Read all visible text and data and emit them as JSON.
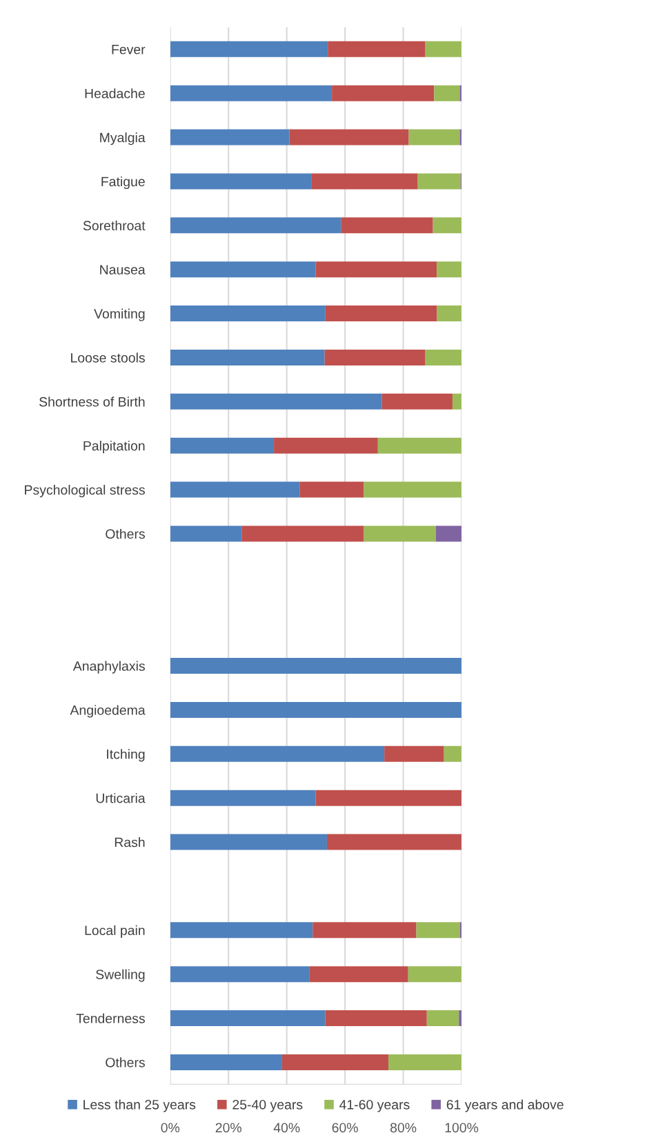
{
  "chart_data": {
    "type": "bar",
    "orientation": "horizontal",
    "stacked": true,
    "categories": [
      "Fever",
      "Headache",
      "Myalgia",
      "Fatigue",
      "Sorethroat",
      "Nausea",
      "Vomiting",
      "Loose stools",
      "Shortness of Birth",
      "Palpitation",
      "Psychological stress",
      "Others",
      null,
      null,
      "Anaphylaxis",
      "Angioedema",
      "Itching",
      "Urticaria",
      "Rash",
      null,
      "Local pain",
      "Swelling",
      "Tenderness",
      "Others"
    ],
    "series": [
      {
        "name": "Less than 25 years",
        "color": "#4f81bd",
        "values": [
          54.1,
          55.5,
          40.9,
          48.4,
          58.6,
          49.9,
          53.3,
          53.0,
          72.7,
          35.6,
          44.4,
          24.5,
          null,
          null,
          100,
          100,
          73.5,
          49.9,
          53.8,
          null,
          48.9,
          47.7,
          53.2,
          38.4
        ]
      },
      {
        "name": "25-40 years",
        "color": "#c0504d",
        "values": [
          33.5,
          35.1,
          41.0,
          36.6,
          31.6,
          41.6,
          38.3,
          34.6,
          24.2,
          35.7,
          22.1,
          42.0,
          null,
          null,
          0,
          0,
          20.5,
          50.1,
          46.2,
          null,
          35.6,
          34.0,
          34.9,
          36.5
        ]
      },
      {
        "name": "41-60 years",
        "color": "#9bbb59",
        "values": [
          12.4,
          8.8,
          17.5,
          14.7,
          9.8,
          8.5,
          8.4,
          12.4,
          3.1,
          28.7,
          33.5,
          24.7,
          null,
          null,
          0,
          0,
          6.0,
          0,
          0,
          null,
          15.0,
          18.3,
          11.0,
          25.1
        ]
      },
      {
        "name": "61 years and above",
        "color": "#8064a2",
        "values": [
          0,
          0.6,
          0.6,
          0.3,
          0,
          0,
          0,
          0,
          0,
          0,
          0,
          8.8,
          null,
          null,
          0,
          0,
          0,
          0,
          0,
          null,
          0.5,
          0,
          0.9,
          0
        ]
      }
    ],
    "xlim": [
      0,
      100
    ],
    "xticks": [
      {
        "value": 0,
        "label": "0%"
      },
      {
        "value": 20,
        "label": "20%"
      },
      {
        "value": 40,
        "label": "40%"
      },
      {
        "value": 60,
        "label": "60%"
      },
      {
        "value": 80,
        "label": "80%"
      },
      {
        "value": 100,
        "label": "100%"
      }
    ],
    "grid": "x",
    "legend": "bottom"
  }
}
